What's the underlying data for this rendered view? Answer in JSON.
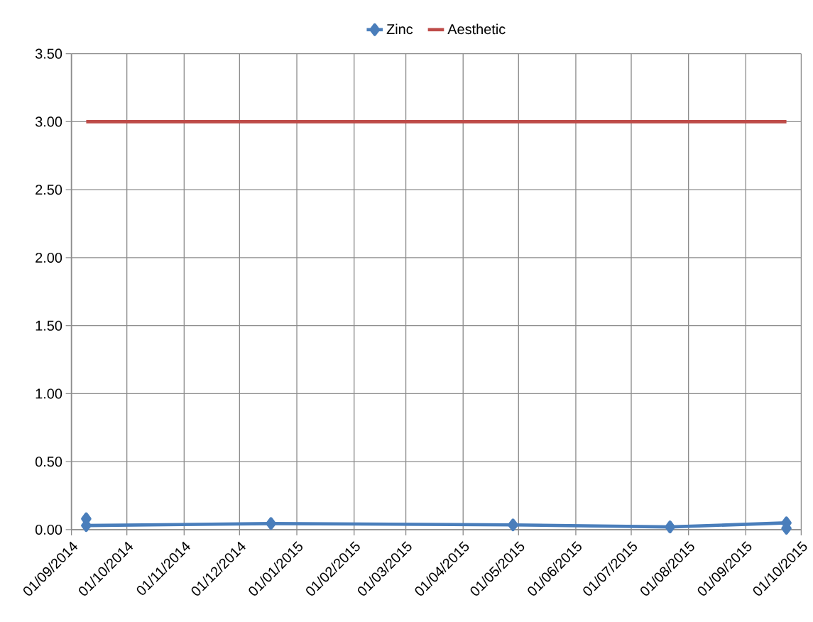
{
  "chart_data": {
    "type": "line",
    "x": [
      "2014-09-09",
      "2014-09-09",
      "2014-12-18",
      "2015-04-28",
      "2015-07-22",
      "2015-09-23",
      "2015-09-23"
    ],
    "series": [
      {
        "name": "Zinc",
        "color": "#4a7ebb",
        "marker": "diamond",
        "values": [
          0.08,
          0.03,
          0.045,
          0.035,
          0.02,
          0.05,
          0.01
        ]
      },
      {
        "name": "Aesthetic",
        "color": "#be4b48",
        "marker": "none",
        "values": [
          3,
          3,
          3,
          3,
          3,
          3,
          3
        ]
      }
    ],
    "xlim": [
      "2014-09-01",
      "2015-10-01"
    ],
    "xticks": [
      {
        "value": "2014-09-01",
        "label": "01/09/2014"
      },
      {
        "value": "2014-10-01",
        "label": "01/10/2014"
      },
      {
        "value": "2014-11-01",
        "label": "01/11/2014"
      },
      {
        "value": "2014-12-01",
        "label": "01/12/2014"
      },
      {
        "value": "2015-01-01",
        "label": "01/01/2015"
      },
      {
        "value": "2015-02-01",
        "label": "01/02/2015"
      },
      {
        "value": "2015-03-01",
        "label": "01/03/2015"
      },
      {
        "value": "2015-04-01",
        "label": "01/04/2015"
      },
      {
        "value": "2015-05-01",
        "label": "01/05/2015"
      },
      {
        "value": "2015-06-01",
        "label": "01/06/2015"
      },
      {
        "value": "2015-07-01",
        "label": "01/07/2015"
      },
      {
        "value": "2015-08-01",
        "label": "01/08/2015"
      },
      {
        "value": "2015-09-01",
        "label": "01/09/2015"
      },
      {
        "value": "2015-10-01",
        "label": "01/10/2015"
      }
    ],
    "ylim": [
      0,
      3.5
    ],
    "yticks": [
      {
        "value": 0,
        "label": "0.00"
      },
      {
        "value": 0.5,
        "label": "0.50"
      },
      {
        "value": 1,
        "label": "1.00"
      },
      {
        "value": 1.5,
        "label": "1.50"
      },
      {
        "value": 2,
        "label": "2.00"
      },
      {
        "value": 2.5,
        "label": "2.50"
      },
      {
        "value": 3,
        "label": "3.00"
      },
      {
        "value": 3.5,
        "label": "3.50"
      }
    ],
    "grid": true,
    "legend": "top",
    "line_style": "solid"
  }
}
